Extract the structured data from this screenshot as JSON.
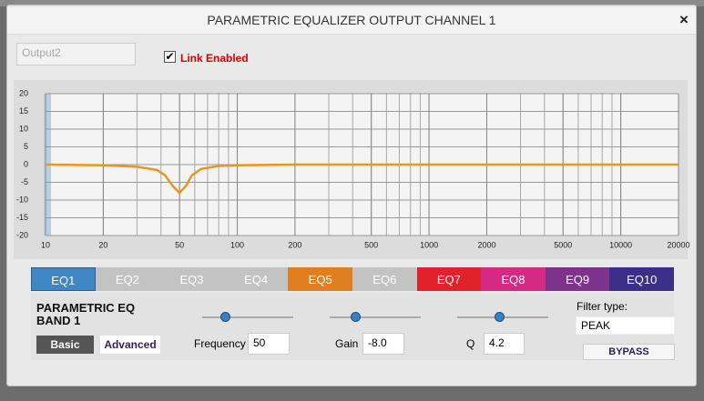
{
  "window": {
    "title": "PARAMETRIC EQUALIZER OUTPUT CHANNEL 1",
    "close": "×"
  },
  "output_name": "Output2",
  "link": {
    "checked": true,
    "label": "Link Enabled"
  },
  "chart_data": {
    "type": "line",
    "xscale": "log",
    "grid": true,
    "x": [
      10,
      20,
      30,
      38,
      42,
      46,
      50,
      54,
      58,
      65,
      80,
      100,
      200,
      20000
    ],
    "series": [
      {
        "color": "#e8961e",
        "values": [
          0,
          -0.2,
          -0.6,
          -1.5,
          -3,
          -6,
          -8,
          -6,
          -3,
          -1.2,
          -0.4,
          -0.2,
          0,
          0
        ]
      }
    ],
    "xlim": [
      10,
      20000
    ],
    "ylim": [
      -20,
      20
    ],
    "xticks": [
      10,
      20,
      50,
      100,
      200,
      500,
      1000,
      2000,
      5000,
      10000,
      20000
    ],
    "yticks": [
      20,
      15,
      10,
      5,
      0,
      -5,
      -10,
      -15,
      -20
    ]
  },
  "tabs": [
    {
      "label": "EQ1",
      "color": "#3f86c4",
      "selected": true
    },
    {
      "label": "EQ2",
      "color": "#c3c3c3"
    },
    {
      "label": "EQ3",
      "color": "#c3c3c3"
    },
    {
      "label": "EQ4",
      "color": "#c3c3c3"
    },
    {
      "label": "EQ5",
      "color": "#e07f22"
    },
    {
      "label": "EQ6",
      "color": "#c3c3c3"
    },
    {
      "label": "EQ7",
      "color": "#e1222d"
    },
    {
      "label": "EQ8",
      "color": "#d42a86"
    },
    {
      "label": "EQ9",
      "color": "#7d328b"
    },
    {
      "label": "EQ10",
      "color": "#3b2f88"
    }
  ],
  "band": {
    "title": "PARAMETRIC EQ BAND 1",
    "basic": "Basic",
    "advanced": "Advanced",
    "frequency": {
      "label": "Frequency",
      "value": "50"
    },
    "gain": {
      "label": "Gain",
      "value": "-8.0"
    },
    "q": {
      "label": "Q",
      "value": "4.2"
    },
    "filter_type": {
      "label": "Filter type:",
      "value": "PEAK"
    },
    "bypass": "BYPASS"
  }
}
